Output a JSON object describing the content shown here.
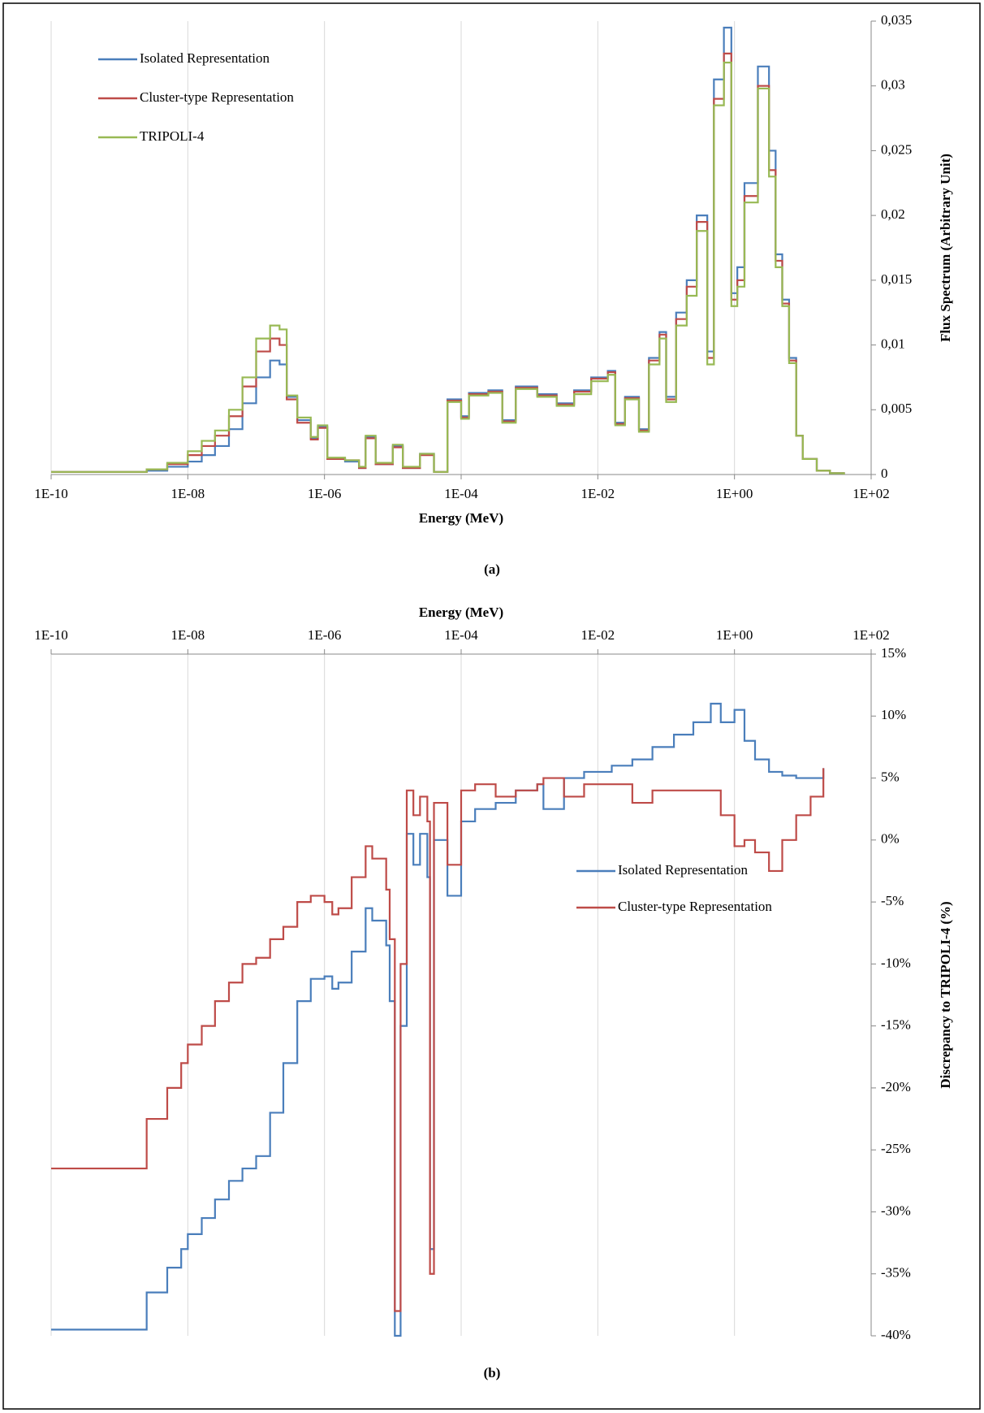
{
  "chart_data": [
    {
      "type": "line",
      "step": "post",
      "label": "(a)",
      "xlabel": "Energy (MeV)",
      "ylabel": "Flux Spectrum (Arbitrary Unit)",
      "xscale": "log",
      "xaxis_position": "bottom",
      "yaxis_position": "right",
      "grid": "x",
      "legend": "upper left",
      "xlim": [
        1e-10,
        100
      ],
      "xticks": [
        {
          "value": 1e-10,
          "label": "1E-10"
        },
        {
          "value": 1e-08,
          "label": "1E-08"
        },
        {
          "value": 1e-06,
          "label": "1E-06"
        },
        {
          "value": 0.0001,
          "label": "1E-04"
        },
        {
          "value": 0.01,
          "label": "1E-02"
        },
        {
          "value": 1,
          "label": "1E+00"
        },
        {
          "value": 100,
          "label": "1E+02"
        }
      ],
      "ylim": [
        0,
        0.035
      ],
      "yticks": [
        0,
        {
          "value": 0.005,
          "label": "0,005"
        },
        {
          "value": 0.01,
          "label": "0,01"
        },
        {
          "value": 0.015,
          "label": "0,015"
        },
        {
          "value": 0.02,
          "label": "0,02"
        },
        {
          "value": 0.025,
          "label": "0,025"
        },
        {
          "value": 0.03,
          "label": "0,03"
        },
        {
          "value": 0.035,
          "label": "0,035"
        }
      ],
      "x": [
        1e-10,
        2.5e-09,
        5e-09,
        1e-08,
        1.6e-08,
        2.5e-08,
        4e-08,
        6.3e-08,
        1e-07,
        1.6e-07,
        2.2e-07,
        2.8e-07,
        4e-07,
        6.3e-07,
        8e-07,
        1.1e-06,
        2e-06,
        3.2e-06,
        4e-06,
        5.6e-06,
        1e-05,
        1.4e-05,
        2.5e-05,
        4e-05,
        6.3e-05,
        0.0001,
        0.00013,
        0.00025,
        0.0004,
        0.00063,
        0.0013,
        0.0025,
        0.0045,
        0.008,
        0.014,
        0.018,
        0.025,
        0.04,
        0.056,
        0.08,
        0.1,
        0.14,
        0.2,
        0.28,
        0.4,
        0.5,
        0.7,
        0.9,
        1.1,
        1.4,
        2.2,
        3.2,
        4,
        5,
        6.3,
        8,
        10,
        16,
        25,
        40
      ],
      "series": [
        {
          "name": "Isolated Representation",
          "color": "#4a7ebb",
          "values": [
            0.0002,
            0.0003,
            0.0006,
            0.001,
            0.0015,
            0.0022,
            0.0035,
            0.0055,
            0.0075,
            0.0088,
            0.0085,
            0.006,
            0.0042,
            0.0028,
            0.0037,
            0.0012,
            0.001,
            0.0005,
            0.0029,
            0.0008,
            0.0022,
            0.0005,
            0.0016,
            0.0002,
            0.0058,
            0.0045,
            0.0063,
            0.0065,
            0.0042,
            0.0068,
            0.0062,
            0.0055,
            0.0065,
            0.0075,
            0.008,
            0.004,
            0.006,
            0.0035,
            0.009,
            0.011,
            0.006,
            0.0125,
            0.015,
            0.02,
            0.0095,
            0.0305,
            0.0345,
            0.014,
            0.016,
            0.0225,
            0.0315,
            0.025,
            0.017,
            0.0135,
            0.009,
            0.003,
            0.0012,
            0.0003,
            0.0001,
            0
          ]
        },
        {
          "name": "Cluster-type Representation",
          "color": "#be4b48",
          "values": [
            0.0002,
            0.0004,
            0.0008,
            0.0015,
            0.0022,
            0.003,
            0.0045,
            0.0068,
            0.0095,
            0.0105,
            0.01,
            0.0058,
            0.004,
            0.0027,
            0.0036,
            0.0012,
            0.0011,
            0.0005,
            0.0028,
            0.0008,
            0.0021,
            0.0005,
            0.0015,
            0.0002,
            0.0057,
            0.0044,
            0.0062,
            0.0064,
            0.0041,
            0.0067,
            0.0061,
            0.0054,
            0.0064,
            0.0074,
            0.0079,
            0.0039,
            0.0059,
            0.0034,
            0.0088,
            0.0108,
            0.0058,
            0.012,
            0.0145,
            0.0195,
            0.009,
            0.029,
            0.0325,
            0.0135,
            0.015,
            0.0215,
            0.03,
            0.0235,
            0.0165,
            0.0132,
            0.0088,
            0.003,
            0.0012,
            0.0003,
            0.0001,
            0
          ]
        },
        {
          "name": "TRIPOLI-4",
          "color": "#98b954",
          "values": [
            0.0002,
            0.0004,
            0.0009,
            0.0018,
            0.0026,
            0.0034,
            0.005,
            0.0075,
            0.0105,
            0.0115,
            0.0112,
            0.0061,
            0.0044,
            0.0029,
            0.0038,
            0.0013,
            0.0011,
            0.0006,
            0.003,
            0.0009,
            0.0023,
            0.0006,
            0.0016,
            0.0002,
            0.0056,
            0.0043,
            0.0061,
            0.0063,
            0.004,
            0.0066,
            0.006,
            0.0053,
            0.0062,
            0.0072,
            0.0077,
            0.0038,
            0.0058,
            0.0033,
            0.0085,
            0.0105,
            0.0056,
            0.0115,
            0.0138,
            0.0188,
            0.0085,
            0.0285,
            0.0318,
            0.013,
            0.0145,
            0.021,
            0.0298,
            0.023,
            0.016,
            0.013,
            0.0086,
            0.003,
            0.0012,
            0.0003,
            0.0001,
            0
          ]
        }
      ]
    },
    {
      "type": "line",
      "step": "post",
      "label": "(b)",
      "xlabel": "Energy (MeV)",
      "ylabel": "Discrepancy to TRIPOLI-4 (%)",
      "xscale": "log",
      "xaxis_position": "top",
      "yaxis_position": "right",
      "grid": "x",
      "legend": "center right",
      "xlim": [
        1e-10,
        100
      ],
      "xticks": [
        {
          "value": 1e-10,
          "label": "1E-10"
        },
        {
          "value": 1e-08,
          "label": "1E-08"
        },
        {
          "value": 1e-06,
          "label": "1E-06"
        },
        {
          "value": 0.0001,
          "label": "1E-04"
        },
        {
          "value": 0.01,
          "label": "1E-02"
        },
        {
          "value": 1,
          "label": "1E+00"
        },
        {
          "value": 100,
          "label": "1E+02"
        }
      ],
      "ylim": [
        -40,
        15
      ],
      "yticks": [
        {
          "value": -40,
          "label": "-40%"
        },
        {
          "value": -35,
          "label": "-35%"
        },
        {
          "value": -30,
          "label": "-30%"
        },
        {
          "value": -25,
          "label": "-25%"
        },
        {
          "value": -20,
          "label": "-20%"
        },
        {
          "value": -15,
          "label": "-15%"
        },
        {
          "value": -10,
          "label": "-10%"
        },
        {
          "value": -5,
          "label": "-5%"
        },
        {
          "value": 0,
          "label": "0%"
        },
        {
          "value": 5,
          "label": "5%"
        },
        {
          "value": 10,
          "label": "10%"
        },
        {
          "value": 15,
          "label": "15%"
        }
      ],
      "x": [
        1e-10,
        2.5e-09,
        5e-09,
        8e-09,
        1e-08,
        1.6e-08,
        2.5e-08,
        4e-08,
        6.3e-08,
        1e-07,
        1.6e-07,
        2.5e-07,
        4e-07,
        6.3e-07,
        1e-06,
        1.3e-06,
        1.6e-06,
        2.5e-06,
        4e-06,
        5e-06,
        8e-06,
        9e-06,
        1.07e-05,
        1.3e-05,
        1.6e-05,
        2e-05,
        2.5e-05,
        3.2e-05,
        3.5e-05,
        4e-05,
        6.3e-05,
        0.0001,
        0.00016,
        0.00032,
        0.00063,
        0.0013,
        0.0016,
        0.0032,
        0.0063,
        0.016,
        0.032,
        0.063,
        0.13,
        0.25,
        0.45,
        0.63,
        1,
        1.4,
        2,
        3.2,
        5,
        8,
        13,
        20
      ],
      "series": [
        {
          "name": "Isolated Representation",
          "color": "#4a7ebb",
          "values": [
            -39.5,
            -36.5,
            -34.5,
            -33,
            -31.8,
            -30.5,
            -29,
            -27.5,
            -26.5,
            -25.5,
            -22,
            -18,
            -13,
            -11.2,
            -11,
            -12,
            -11.5,
            -9,
            -5.5,
            -6.5,
            -8.5,
            -13,
            -40,
            -15,
            0.5,
            -2,
            0.5,
            -3,
            -33,
            0,
            -4.5,
            1.5,
            2.5,
            3,
            4,
            4.5,
            2.5,
            5,
            5.5,
            6,
            6.5,
            7.5,
            8.5,
            9.5,
            11,
            9.5,
            10.5,
            8,
            6.5,
            5.5,
            5.2,
            5,
            5,
            5.8
          ]
        },
        {
          "name": "Cluster-type Representation",
          "color": "#be4b48",
          "values": [
            -26.5,
            -22.5,
            -20,
            -18,
            -16.5,
            -15,
            -13,
            -11.5,
            -10,
            -9.5,
            -8,
            -7,
            -5,
            -4.5,
            -5,
            -6,
            -5.5,
            -3,
            -0.5,
            -1.5,
            -4,
            -8,
            -38,
            -10,
            4,
            2,
            3.5,
            1.5,
            -35,
            3,
            -2,
            4,
            4.5,
            3.5,
            4,
            4.5,
            5,
            3.5,
            4.5,
            4.5,
            3,
            4,
            4,
            4,
            4,
            2,
            -0.5,
            0,
            -1,
            -2.5,
            0,
            2,
            3.5,
            5.8
          ]
        }
      ]
    }
  ]
}
